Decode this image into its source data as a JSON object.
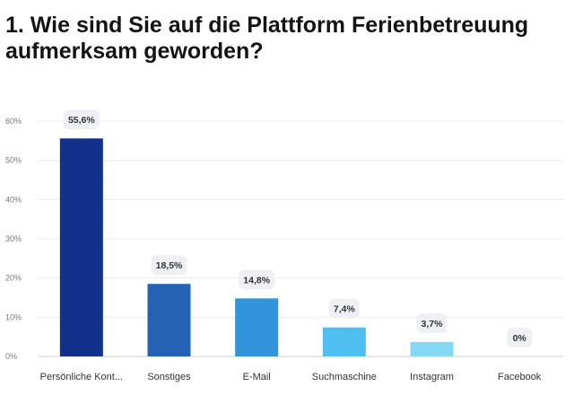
{
  "chart_data": {
    "type": "bar",
    "title": "1. Wie sind Sie auf die Plattform Ferienbetreuung aufmerksam geworden?",
    "categories": [
      "Persönliche Kont...",
      "Sonstiges",
      "E-Mail",
      "Suchmaschine",
      "Instagram",
      "Facebook"
    ],
    "values": [
      55.6,
      18.5,
      14.8,
      7.4,
      3.7,
      0
    ],
    "value_labels": [
      "55,6%",
      "18,5%",
      "14,8%",
      "7,4%",
      "3,7%",
      "0%"
    ],
    "colors": [
      "#11318a",
      "#2463b4",
      "#3294db",
      "#4fbfef",
      "#86d9f4",
      "#a9e6f7"
    ],
    "ylim": [
      0,
      60
    ],
    "yticks": [
      0,
      10,
      20,
      30,
      40,
      50,
      60
    ],
    "ytick_labels": [
      "0%",
      "10%",
      "20%",
      "30%",
      "40%",
      "50%",
      "60%"
    ],
    "grid": true,
    "xlabel": "",
    "ylabel": ""
  }
}
